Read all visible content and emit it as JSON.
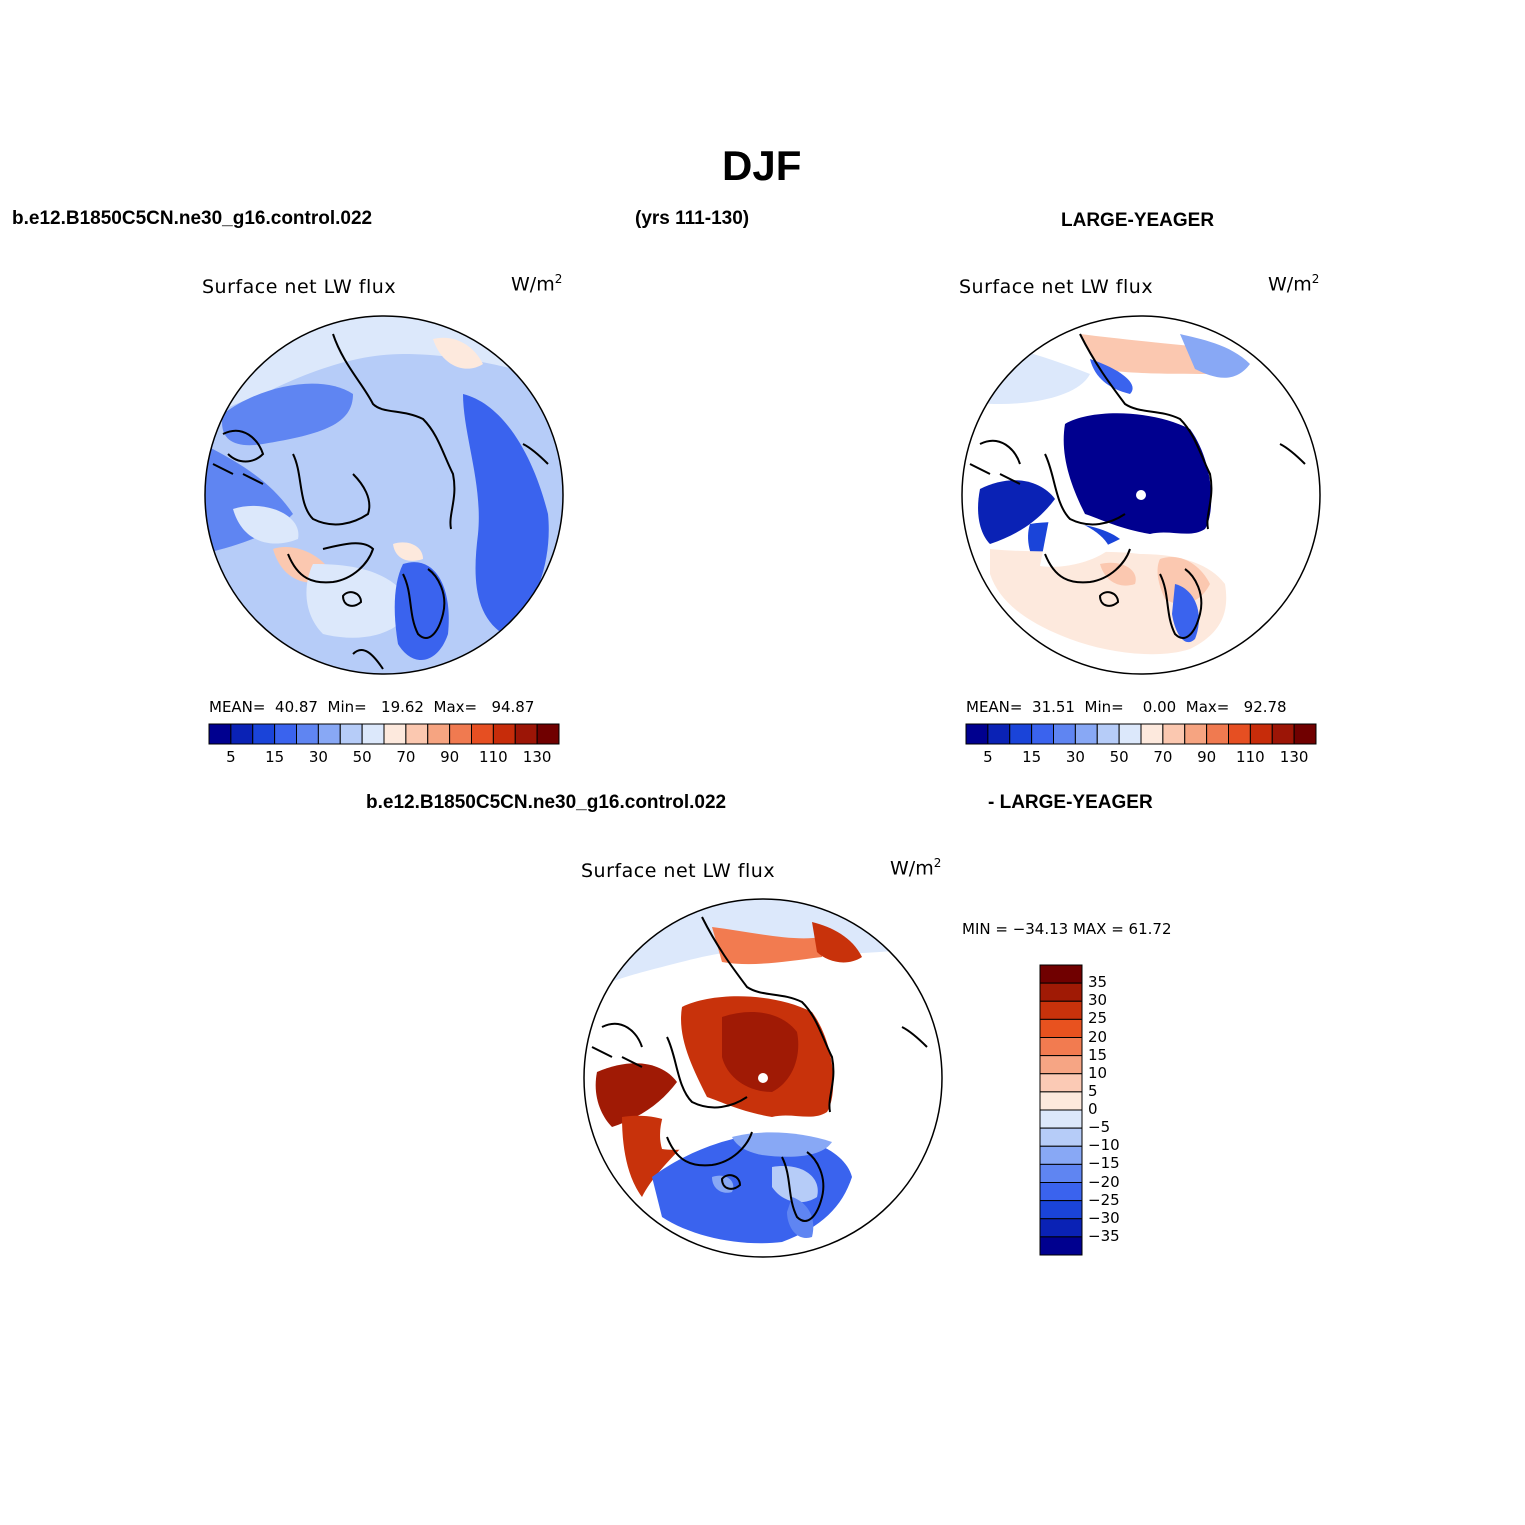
{
  "title": "DJF",
  "headers": {
    "case": "b.e12.B1850C5CN.ne30_g16.control.022",
    "years": "(yrs 111-130)",
    "obs": "LARGE-YEAGER",
    "diff_case": "b.e12.B1850C5CN.ne30_g16.control.022",
    "diff_obs": "- LARGE-YEAGER"
  },
  "panels": [
    {
      "title": "Surface net LW flux",
      "units_base": "W/m",
      "units_exp": "2",
      "stats": {
        "mean_label": "MEAN=",
        "mean": "40.87",
        "min_label": "Min=",
        "min": "19.62",
        "max_label": "Max=",
        "max": "94.87"
      },
      "colorbar_ticks": [
        "5",
        "15",
        "30",
        "50",
        "70",
        "90",
        "110",
        "130"
      ]
    },
    {
      "title": "Surface net LW flux",
      "units_base": "W/m",
      "units_exp": "2",
      "stats": {
        "mean_label": "MEAN=",
        "mean": "31.51",
        "min_label": "Min=",
        "min": "0.00",
        "max_label": "Max=",
        "max": "92.78"
      },
      "colorbar_ticks": [
        "5",
        "15",
        "30",
        "50",
        "70",
        "90",
        "110",
        "130"
      ]
    },
    {
      "title": "Surface net LW flux",
      "units_base": "W/m",
      "units_exp": "2",
      "minmax": "MIN = −34.13 MAX =  61.72",
      "colorbar_ticks": [
        "35",
        "30",
        "25",
        "20",
        "15",
        "10",
        "5",
        "0",
        "−5",
        "−10",
        "−15",
        "−20",
        "−25",
        "−30",
        "−35"
      ]
    }
  ],
  "colors": {
    "abs_scale": [
      "#00008f",
      "#0a22b5",
      "#1a44d9",
      "#3a63ee",
      "#5f85f2",
      "#88a8f5",
      "#b6ccf8",
      "#dce8fb",
      "#fde9dd",
      "#fbc8b0",
      "#f6a481",
      "#f07a50",
      "#e64f22",
      "#c72c0a",
      "#9c1506",
      "#700000"
    ],
    "diff_scale": [
      "#700000",
      "#a01a05",
      "#c8320b",
      "#e8521f",
      "#f27b50",
      "#f6a584",
      "#fbcab5",
      "#fde9dd",
      "#dce8fb",
      "#b6ccf8",
      "#88a8f5",
      "#5f85f2",
      "#3a63ee",
      "#1a44d9",
      "#0a22b5",
      "#00008f"
    ]
  }
}
